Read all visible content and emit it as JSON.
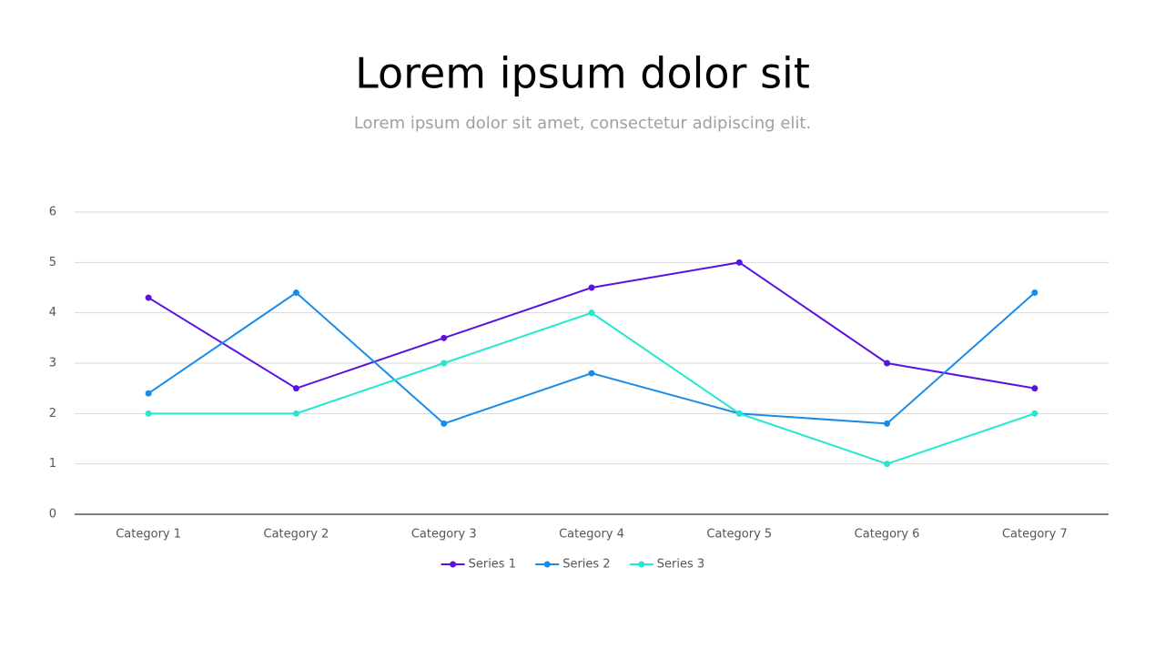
{
  "chart_data": {
    "type": "line",
    "title": "Lorem ipsum dolor sit",
    "subtitle": "Lorem ipsum dolor sit amet, consectetur adipiscing elit.",
    "categories": [
      "Category 1",
      "Category 2",
      "Category 3",
      "Category 4",
      "Category 5",
      "Category 6",
      "Category 7"
    ],
    "series": [
      {
        "name": "Series 1",
        "color": "#5a12e0",
        "values": [
          4.3,
          2.5,
          3.5,
          4.5,
          5,
          3,
          2.5
        ]
      },
      {
        "name": "Series 2",
        "color": "#1a8ce8",
        "values": [
          2.4,
          4.4,
          1.8,
          2.8,
          2,
          1.8,
          4.4
        ]
      },
      {
        "name": "Series 3",
        "color": "#22e8cf",
        "values": [
          2,
          2,
          3,
          4,
          2,
          1,
          2
        ]
      }
    ],
    "ylim": [
      0,
      6
    ],
    "yticks": [
      0,
      1,
      2,
      3,
      4,
      5,
      6
    ],
    "grid": true,
    "legend": "bottom"
  }
}
